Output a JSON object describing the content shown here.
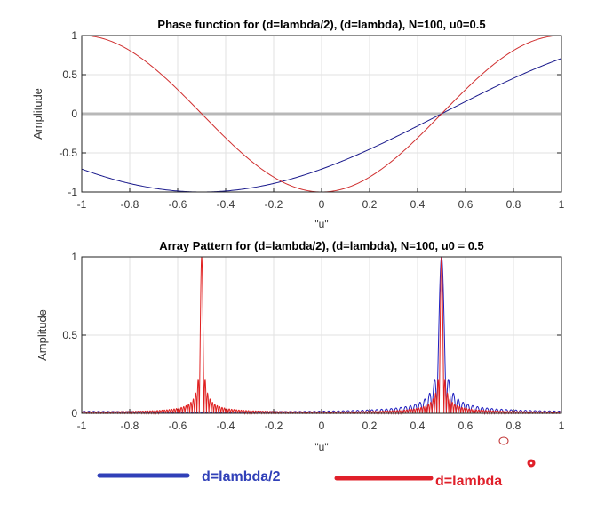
{
  "chart_data": [
    {
      "type": "line",
      "title": "Phase function for (d=lambda/2),  (d=lambda),  N=100, u0=0.5",
      "xlabel": "\"u\"",
      "ylabel": "Amplitude",
      "xlim": [
        -1,
        1
      ],
      "ylim": [
        -1,
        1
      ],
      "xticks": [
        "-1",
        "-0.8",
        "-0.6",
        "-0.4",
        "-0.2",
        "0",
        "0.2",
        "0.4",
        "0.6",
        "0.8",
        "1"
      ],
      "yticks": [
        "-1",
        "-0.5",
        "0",
        "0.5",
        "1"
      ],
      "grid": true,
      "series": [
        {
          "key": "half",
          "color": "#1a1a8c",
          "points": [
            [
              -1,
              -0.707
            ],
            [
              -0.5,
              -1
            ],
            [
              0,
              -0.707
            ],
            [
              0.5,
              0
            ],
            [
              1,
              0.707
            ]
          ]
        },
        {
          "key": "full",
          "color": "#d03030",
          "points": [
            [
              -1,
              1
            ],
            [
              -0.5,
              0
            ],
            [
              0,
              -1
            ],
            [
              0.5,
              0
            ],
            [
              1,
              1
            ]
          ]
        },
        {
          "key": "zero",
          "color": "#b8b8b8",
          "points": [
            [
              -1,
              0
            ],
            [
              1,
              0
            ]
          ]
        }
      ]
    },
    {
      "type": "line",
      "title": "Array Pattern for (d=lambda/2), (d=lambda), N=100, u0 = 0.5",
      "xlabel": "\"u\"",
      "ylabel": "Amplitude",
      "xlim": [
        -1,
        1
      ],
      "ylim": [
        0,
        1
      ],
      "xticks": [
        "-1",
        "-0.8",
        "-0.6",
        "-0.4",
        "-0.2",
        "0",
        "0.2",
        "0.4",
        "0.6",
        "0.8",
        "1"
      ],
      "yticks": [
        "0",
        "0.5",
        "1"
      ],
      "grid": true,
      "N": 100,
      "u0": 0.5,
      "series": [
        {
          "key": "half",
          "d_over_lambda": 0.5,
          "color": "#2020c0",
          "peaks": [
            [
              0.5,
              1
            ]
          ],
          "first_sidelobe": 0.22
        },
        {
          "key": "full",
          "d_over_lambda": 1,
          "color": "#e02020",
          "peaks": [
            [
              -0.5,
              1
            ],
            [
              0.5,
              1
            ]
          ],
          "first_sidelobe": 0.22
        }
      ]
    }
  ],
  "legend": {
    "items": [
      {
        "label": "d=lambda/2",
        "color": "#3040b8"
      },
      {
        "label": "d=lambda",
        "color": "#e0202a"
      }
    ]
  }
}
